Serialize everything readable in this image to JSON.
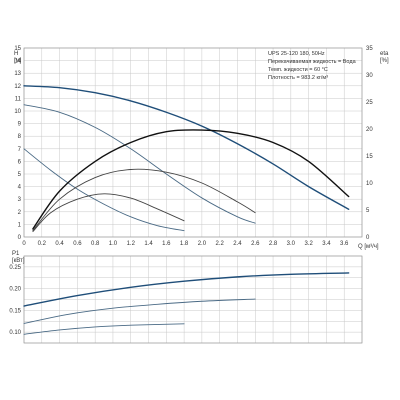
{
  "chart_data": [
    {
      "type": "line",
      "panel": "head",
      "info_box": [
        "UPS 25-120 180, 50Hz",
        "Перекачиваемая жидкость = Вода",
        "Темп. жидкости = 60 °C",
        "Плотность = 983.2 кг/м³"
      ],
      "xlabel": "Q [м³/ч]",
      "ylabel_left": [
        "H",
        "[м]"
      ],
      "ylabel_right": [
        "eta",
        "[%]"
      ],
      "x_ticks": [
        "0",
        "0.2",
        "0.4",
        "0.6",
        "0.8",
        "1.0",
        "1.2",
        "1.4",
        "1.6",
        "1.8",
        "2.0",
        "2.2",
        "2.4",
        "2.6",
        "2.8",
        "3.0",
        "3.2",
        "3.4",
        "3.6"
      ],
      "y_ticks_left": [
        "0",
        "1",
        "2",
        "3",
        "4",
        "5",
        "6",
        "7",
        "8",
        "9",
        "10",
        "11",
        "12",
        "13",
        "14",
        "15"
      ],
      "y_ticks_right": [
        "0",
        "5",
        "10",
        "15",
        "20",
        "25",
        "30",
        "35"
      ],
      "xlim": [
        0,
        3.8
      ],
      "ylim": [
        0,
        15
      ],
      "ylim_right": [
        0,
        35
      ],
      "grid": true,
      "series": [
        {
          "axis": "left",
          "color": "#1f4e79",
          "width": 1.4,
          "x": [
            0,
            0.4,
            0.8,
            1.2,
            1.6,
            2.0,
            2.4,
            2.8,
            3.2,
            3.65
          ],
          "y": [
            12.0,
            11.85,
            11.45,
            10.8,
            9.9,
            8.8,
            7.4,
            5.8,
            4.0,
            2.2
          ]
        },
        {
          "axis": "left",
          "color": "#4a6a85",
          "width": 0.9,
          "x": [
            0,
            0.4,
            0.8,
            1.2,
            1.6,
            2.0,
            2.4,
            2.6
          ],
          "y": [
            10.5,
            9.9,
            8.7,
            7.0,
            5.0,
            3.1,
            1.6,
            1.1
          ]
        },
        {
          "axis": "left",
          "color": "#4a6a85",
          "width": 0.9,
          "x": [
            0,
            0.3,
            0.6,
            0.9,
            1.2,
            1.5,
            1.8
          ],
          "y": [
            7.0,
            5.3,
            3.8,
            2.6,
            1.6,
            0.9,
            0.5
          ]
        },
        {
          "axis": "right",
          "color": "#111111",
          "width": 1.4,
          "x": [
            0.1,
            0.4,
            0.8,
            1.2,
            1.6,
            2.0,
            2.4,
            2.8,
            3.2,
            3.65
          ],
          "y": [
            1.5,
            8.5,
            14.0,
            17.5,
            19.5,
            19.8,
            19.2,
            17.5,
            14.0,
            7.5
          ]
        },
        {
          "axis": "right",
          "color": "#444444",
          "width": 0.9,
          "x": [
            0.1,
            0.4,
            0.8,
            1.2,
            1.6,
            2.0,
            2.4,
            2.6
          ],
          "y": [
            1.2,
            7.0,
            11.0,
            12.5,
            12.0,
            10.0,
            6.5,
            4.5
          ]
        },
        {
          "axis": "right",
          "color": "#444444",
          "width": 0.9,
          "x": [
            0.1,
            0.3,
            0.6,
            0.9,
            1.2,
            1.5,
            1.8
          ],
          "y": [
            1.0,
            4.5,
            7.0,
            8.0,
            7.2,
            5.2,
            3.0
          ]
        }
      ]
    },
    {
      "type": "line",
      "panel": "power",
      "xlabel": "",
      "ylabel_left": [
        "P1",
        "[кВт]"
      ],
      "y_ticks_left": [
        "0.10",
        "0.15",
        "0.20",
        "0.25"
      ],
      "xlim": [
        0,
        3.8
      ],
      "ylim": [
        0.075,
        0.275
      ],
      "grid": true,
      "series": [
        {
          "axis": "left",
          "color": "#1f4e79",
          "width": 1.4,
          "x": [
            0,
            0.6,
            1.2,
            1.8,
            2.4,
            3.0,
            3.65
          ],
          "y": [
            0.16,
            0.184,
            0.203,
            0.217,
            0.227,
            0.233,
            0.236
          ]
        },
        {
          "axis": "left",
          "color": "#4a6a85",
          "width": 0.9,
          "x": [
            0,
            0.5,
            1.0,
            1.5,
            2.0,
            2.6
          ],
          "y": [
            0.12,
            0.141,
            0.155,
            0.164,
            0.171,
            0.176
          ]
        },
        {
          "axis": "left",
          "color": "#4a6a85",
          "width": 0.9,
          "x": [
            0,
            0.4,
            0.8,
            1.2,
            1.8
          ],
          "y": [
            0.095,
            0.105,
            0.112,
            0.116,
            0.119
          ]
        }
      ]
    }
  ]
}
